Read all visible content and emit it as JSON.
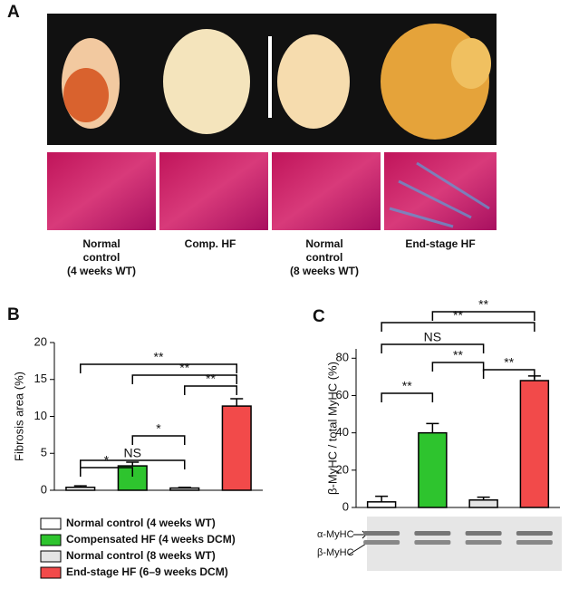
{
  "panel_a": {
    "letter": "A",
    "labels": [
      [
        "Normal",
        "control",
        "(4 weeks WT)"
      ],
      [
        "Comp. HF"
      ],
      [
        "Normal",
        "control",
        "(8 weeks WT)"
      ],
      [
        "End-stage HF"
      ]
    ]
  },
  "chart_data": [
    {
      "type": "bar",
      "letter": "B",
      "ylabel": "Fibrosis area (%)",
      "categories": [
        "Normal control (4 weeks WT)",
        "Compensated HF (4 weeks DCM)",
        "Normal control (8 weeks WT)",
        "End-stage HF (6–9 weeks DCM)"
      ],
      "colors": [
        "#ffffff",
        "#2ec42e",
        "#e4e4e4",
        "#f24a4a"
      ],
      "values": [
        0.4,
        3.3,
        0.3,
        11.4
      ],
      "errors": [
        0.2,
        0.5,
        0.1,
        1.0
      ],
      "ylim": [
        0,
        20
      ],
      "yticks": [
        0,
        5,
        10,
        15,
        20
      ],
      "annotations": [
        {
          "from": 0,
          "to": 3,
          "label": "**"
        },
        {
          "from": 1,
          "to": 3,
          "label": "**"
        },
        {
          "from": 2,
          "to": 3,
          "label": "**"
        },
        {
          "from": 1,
          "to": 2,
          "label": "*"
        },
        {
          "from": 0,
          "to": 2,
          "label": "NS"
        },
        {
          "from": 0,
          "to": 1,
          "label": "*"
        }
      ]
    },
    {
      "type": "bar",
      "letter": "C",
      "ylabel": "β-MyHC / total MyHC (%)",
      "colors": [
        "#ffffff",
        "#2ec42e",
        "#e4e4e4",
        "#f24a4a"
      ],
      "values": [
        3,
        40,
        4,
        68
      ],
      "errors": [
        3,
        5,
        1.5,
        2.5
      ],
      "ylim": [
        0,
        85
      ],
      "yticks": [
        0,
        20,
        40,
        60,
        80
      ],
      "annotations": [
        {
          "from": 1,
          "to": 3,
          "label": "**"
        },
        {
          "from": 0,
          "to": 3,
          "label": "**"
        },
        {
          "from": 0,
          "to": 2,
          "label": "NS"
        },
        {
          "from": 1,
          "to": 2,
          "label": "**"
        },
        {
          "from": 2,
          "to": 3,
          "label": "**"
        },
        {
          "from": 0,
          "to": 1,
          "label": "**"
        }
      ],
      "gel_labels": [
        "α-MyHC",
        "β-MyHC"
      ]
    }
  ]
}
